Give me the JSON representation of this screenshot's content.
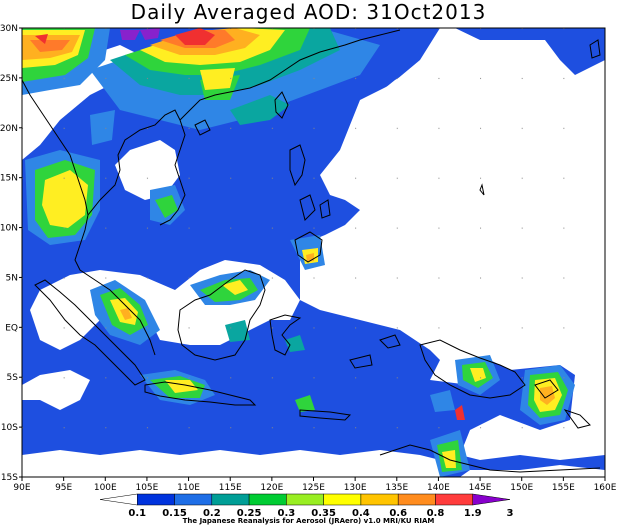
{
  "title": "Daily Averaged AOD: 31Oct2013",
  "credit": "The Japanese Reanalysis for Aerosol (JRAero) v1.0 MRI/KU RIAM",
  "map": {
    "lon_range": [
      90,
      160
    ],
    "lat_range": [
      -15,
      30
    ],
    "lon_ticks": [
      "90E",
      "95E",
      "100E",
      "105E",
      "110E",
      "115E",
      "120E",
      "125E",
      "130E",
      "135E",
      "140E",
      "145E",
      "150E",
      "155E",
      "160E"
    ],
    "lat_ticks": [
      "30N",
      "25N",
      "20N",
      "15N",
      "10N",
      "5N",
      "EQ",
      "5S",
      "10S",
      "15S"
    ]
  },
  "colorbar": {
    "labels": [
      "0.1",
      "0.15",
      "0.2",
      "0.25",
      "0.3",
      "0.35",
      "0.4",
      "0.6",
      "0.8",
      "1.9",
      "3"
    ],
    "colors": [
      "#ffffff",
      "#0033dd",
      "#1e6ee6",
      "#009e96",
      "#00cc33",
      "#99ee22",
      "#ffff00",
      "#ffc400",
      "#ff8c1e",
      "#ff3c3c",
      "#8800cc"
    ]
  },
  "levels": {
    "blue": "#1e4fe0",
    "lightblue": "#2f86e6",
    "teal": "#0aa6a0",
    "green": "#2fd43c",
    "yellowgreen": "#b6ec2a",
    "yellow": "#ffee22",
    "orange": "#ffb020",
    "darkorange": "#ff7a2a",
    "red": "#f03030",
    "purple": "#8822cc"
  }
}
